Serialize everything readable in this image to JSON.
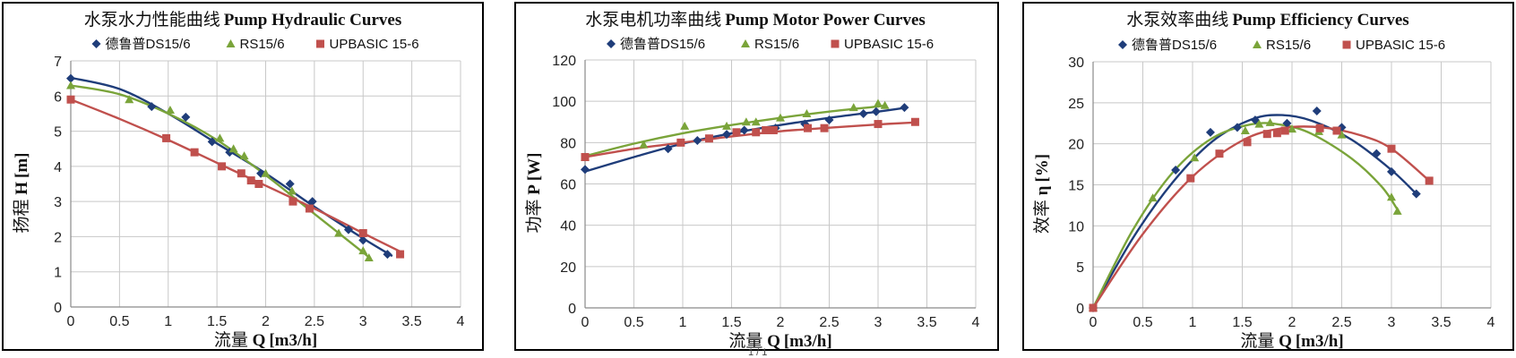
{
  "footer_text": "1 / 1",
  "chart_data": [
    {
      "type": "scatter",
      "title_cn": "水泵水力性能曲线",
      "title_en": "Pump Hydraulic Curves",
      "xlabel_cn": "流量",
      "xlabel_sym": "Q",
      "xlabel_unit": "[m3/h]",
      "ylabel_cn": "扬程",
      "ylabel_sym": "H",
      "ylabel_unit": "[m]",
      "xlim": [
        0,
        4
      ],
      "ylim": [
        0,
        7
      ],
      "xticks": [
        "0",
        "0.5",
        "1",
        "1.5",
        "2",
        "2.5",
        "3",
        "3.5",
        "4"
      ],
      "yticks": [
        "0",
        "1",
        "2",
        "3",
        "4",
        "5",
        "6",
        "7"
      ],
      "grid": true,
      "legend_position": "top",
      "series": [
        {
          "name": "德鲁普DS15/6",
          "color": "#1f3d7a",
          "marker": "diamond",
          "x": [
            0,
            0.83,
            1.18,
            1.45,
            1.63,
            1.95,
            2.25,
            2.48,
            2.85,
            3.0,
            3.25
          ],
          "y": [
            6.5,
            5.7,
            5.4,
            4.7,
            4.4,
            3.8,
            3.5,
            3.0,
            2.2,
            1.9,
            1.5
          ],
          "fit": [
            [
              0,
              6.52
            ],
            [
              0.5,
              6.2
            ],
            [
              1,
              5.5
            ],
            [
              1.5,
              4.65
            ],
            [
              2,
              3.8
            ],
            [
              2.5,
              2.85
            ],
            [
              3,
              1.95
            ],
            [
              3.3,
              1.45
            ]
          ]
        },
        {
          "name": "RS15/6",
          "color": "#7aa43a",
          "marker": "triangle",
          "x": [
            0,
            0.6,
            1.02,
            1.53,
            1.67,
            1.78,
            2.0,
            2.27,
            2.75,
            3.0,
            3.06
          ],
          "y": [
            6.3,
            5.9,
            5.6,
            4.8,
            4.5,
            4.3,
            3.8,
            3.3,
            2.1,
            1.6,
            1.4
          ],
          "fit": [
            [
              0,
              6.3
            ],
            [
              0.5,
              6.05
            ],
            [
              1,
              5.5
            ],
            [
              1.5,
              4.75
            ],
            [
              2,
              3.75
            ],
            [
              2.5,
              2.65
            ],
            [
              3,
              1.55
            ],
            [
              3.08,
              1.35
            ]
          ]
        },
        {
          "name": "UPBASIC 15-6",
          "color": "#c0504d",
          "marker": "square",
          "x": [
            0,
            0.98,
            1.27,
            1.55,
            1.75,
            1.85,
            1.93,
            2.28,
            2.45,
            3.0,
            3.38
          ],
          "y": [
            5.9,
            4.8,
            4.4,
            4.0,
            3.8,
            3.6,
            3.5,
            3.0,
            2.8,
            2.1,
            1.5
          ],
          "fit": [
            [
              0,
              5.9
            ],
            [
              0.5,
              5.35
            ],
            [
              1,
              4.75
            ],
            [
              1.5,
              4.1
            ],
            [
              2,
              3.45
            ],
            [
              2.5,
              2.8
            ],
            [
              3,
              2.1
            ],
            [
              3.4,
              1.55
            ]
          ]
        }
      ]
    },
    {
      "type": "scatter",
      "title_cn": "水泵电机功率曲线",
      "title_en": "Pump Motor Power Curves",
      "xlabel_cn": "流量",
      "xlabel_sym": "Q",
      "xlabel_unit": "[m3/h]",
      "ylabel_cn": "功率",
      "ylabel_sym": "P",
      "ylabel_unit": "[W]",
      "xlim": [
        0,
        4
      ],
      "ylim": [
        0,
        120
      ],
      "xticks": [
        "0",
        "0.5",
        "1",
        "1.5",
        "2",
        "2.5",
        "3",
        "3.5",
        "4"
      ],
      "yticks": [
        "0",
        "20",
        "40",
        "60",
        "80",
        "100",
        "120"
      ],
      "grid": true,
      "legend_position": "top",
      "series": [
        {
          "name": "德鲁普DS15/6",
          "color": "#1f3d7a",
          "marker": "diamond",
          "x": [
            0,
            0.85,
            1.15,
            1.45,
            1.63,
            1.95,
            2.25,
            2.5,
            2.85,
            2.98,
            3.27
          ],
          "y": [
            67,
            77,
            81,
            84,
            86,
            87,
            89,
            91,
            94,
            95,
            97
          ],
          "fit": [
            [
              0,
              66
            ],
            [
              0.5,
              73
            ],
            [
              1,
              79.5
            ],
            [
              1.5,
              84.5
            ],
            [
              2,
              88.5
            ],
            [
              2.5,
              92
            ],
            [
              3,
              95
            ],
            [
              3.3,
              97
            ]
          ]
        },
        {
          "name": "RS15/6",
          "color": "#7aa43a",
          "marker": "triangle",
          "x": [
            0,
            0.6,
            1.02,
            1.45,
            1.65,
            1.75,
            2.0,
            2.27,
            2.75,
            3.0,
            3.07
          ],
          "y": [
            73,
            79,
            88,
            88,
            90,
            90,
            92,
            94,
            97,
            99,
            98
          ],
          "fit": [
            [
              0,
              73.5
            ],
            [
              0.5,
              79.5
            ],
            [
              1,
              84.5
            ],
            [
              1.5,
              88.5
            ],
            [
              2,
              92
            ],
            [
              2.5,
              95
            ],
            [
              3,
              97.5
            ],
            [
              3.08,
              98
            ]
          ]
        },
        {
          "name": "UPBASIC 15-6",
          "color": "#c0504d",
          "marker": "square",
          "x": [
            0,
            0.98,
            1.27,
            1.55,
            1.75,
            1.85,
            1.93,
            2.28,
            2.45,
            3.0,
            3.38
          ],
          "y": [
            73,
            80,
            82,
            85,
            85,
            86,
            86,
            87,
            87,
            89,
            90
          ],
          "fit": [
            [
              0,
              73
            ],
            [
              0.5,
              77
            ],
            [
              1,
              80
            ],
            [
              1.5,
              83
            ],
            [
              2,
              85.5
            ],
            [
              2.5,
              87.2
            ],
            [
              3,
              88.8
            ],
            [
              3.4,
              89.8
            ]
          ]
        }
      ]
    },
    {
      "type": "scatter",
      "title_cn": "水泵效率曲线",
      "title_en": "Pump Efficiency Curves",
      "xlabel_cn": "流量",
      "xlabel_sym": "Q",
      "xlabel_unit": "[m3/h]",
      "ylabel_cn": "效率",
      "ylabel_sym": "η",
      "ylabel_unit": "[%]",
      "xlim": [
        0,
        4
      ],
      "ylim": [
        0,
        30
      ],
      "xticks": [
        "0",
        "0.5",
        "1",
        "1.5",
        "2",
        "2.5",
        "3",
        "3.5",
        "4"
      ],
      "yticks": [
        "0",
        "5",
        "10",
        "15",
        "20",
        "25",
        "30"
      ],
      "grid": true,
      "legend_position": "top",
      "series": [
        {
          "name": "德鲁普DS15/6",
          "color": "#1f3d7a",
          "marker": "diamond",
          "x": [
            0,
            0.83,
            1.18,
            1.45,
            1.63,
            1.95,
            2.25,
            2.5,
            2.85,
            3.0,
            3.25
          ],
          "y": [
            0,
            16.8,
            21.4,
            22.0,
            22.9,
            22.5,
            24.0,
            22.0,
            18.8,
            16.6,
            13.9
          ],
          "fit": [
            [
              0,
              0
            ],
            [
              0.4,
              8.5
            ],
            [
              0.8,
              15.3
            ],
            [
              1.2,
              20.3
            ],
            [
              1.6,
              23.0
            ],
            [
              1.9,
              23.5
            ],
            [
              2.2,
              22.8
            ],
            [
              2.6,
              20.5
            ],
            [
              3.0,
              16.8
            ],
            [
              3.25,
              13.9
            ]
          ]
        },
        {
          "name": "RS15/6",
          "color": "#7aa43a",
          "marker": "triangle",
          "x": [
            0,
            0.6,
            1.02,
            1.53,
            1.67,
            1.78,
            2.0,
            2.27,
            2.5,
            3.0,
            3.06
          ],
          "y": [
            0,
            13.4,
            18.3,
            21.6,
            22.4,
            22.6,
            21.8,
            21.5,
            21.1,
            13.5,
            11.8
          ],
          "fit": [
            [
              0,
              0
            ],
            [
              0.4,
              9.5
            ],
            [
              0.8,
              16.5
            ],
            [
              1.2,
              20.7
            ],
            [
              1.6,
              22.4
            ],
            [
              1.9,
              22.3
            ],
            [
              2.2,
              21.2
            ],
            [
              2.6,
              18.2
            ],
            [
              2.9,
              14.8
            ],
            [
              3.06,
              12.0
            ]
          ]
        },
        {
          "name": "UPBASIC 15-6",
          "color": "#c0504d",
          "marker": "square",
          "x": [
            0,
            0.98,
            1.27,
            1.55,
            1.75,
            1.85,
            1.93,
            2.28,
            2.45,
            3.0,
            3.38
          ],
          "y": [
            0,
            15.8,
            18.8,
            20.2,
            21.2,
            21.3,
            21.6,
            21.9,
            21.6,
            19.4,
            15.5
          ],
          "fit": [
            [
              0,
              0
            ],
            [
              0.5,
              9.0
            ],
            [
              1,
              16.0
            ],
            [
              1.5,
              20.4
            ],
            [
              1.9,
              21.9
            ],
            [
              2.3,
              22.0
            ],
            [
              2.7,
              21.0
            ],
            [
              3.0,
              19.4
            ],
            [
              3.38,
              15.5
            ]
          ]
        }
      ]
    }
  ]
}
